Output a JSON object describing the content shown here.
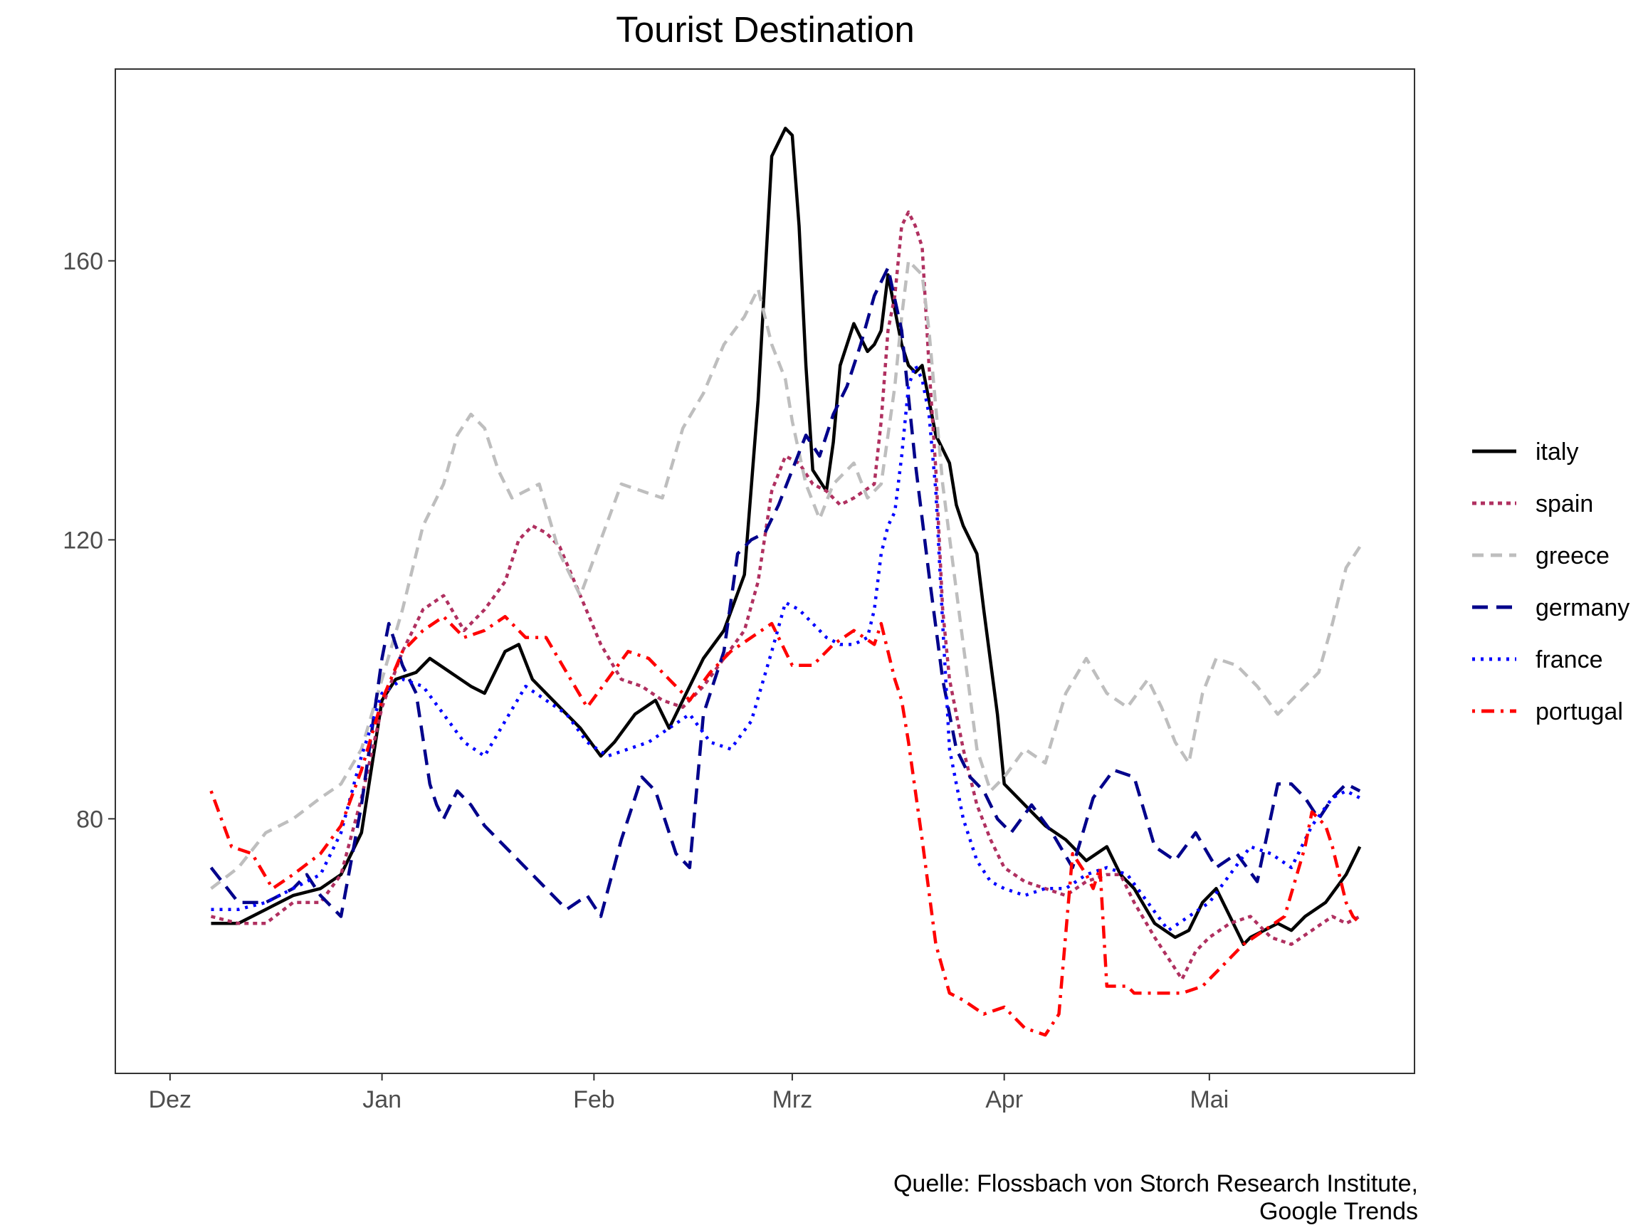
{
  "chart_data": {
    "type": "line",
    "title": "Tourist Destination",
    "xlabel": "",
    "ylabel": "",
    "caption_lines": [
      "Quelle: Flossbach von Storch Research Institute,",
      "Google Trends"
    ],
    "x_ticks": [
      "Dez",
      "Jan",
      "Feb",
      "Mrz",
      "Apr",
      "Mai"
    ],
    "x_tick_days": [
      0,
      31,
      62,
      91,
      122,
      152
    ],
    "xlim": [
      -8,
      182
    ],
    "y_ticks": [
      80,
      120,
      160
    ],
    "ylim": [
      43.5,
      187.5
    ],
    "grid": false,
    "legend_position": "right",
    "series": [
      {
        "name": "italy",
        "color": "#000000",
        "dash": "solid",
        "x": [
          6,
          10,
          14,
          18,
          22,
          25,
          28,
          31,
          33,
          36,
          38,
          41,
          44,
          46,
          49,
          51,
          53,
          57,
          60,
          63,
          65,
          68,
          71,
          73,
          75,
          78,
          81,
          84,
          86,
          88,
          90,
          91,
          92,
          93,
          94,
          96,
          97,
          98,
          100,
          102,
          103,
          104,
          105,
          107,
          108,
          109,
          110,
          111,
          112,
          113,
          114,
          115,
          116,
          118,
          119,
          121,
          122,
          125,
          128,
          131,
          134,
          137,
          139,
          141,
          144,
          147,
          149,
          151,
          153,
          155,
          156,
          157,
          158,
          160,
          162,
          164,
          166,
          169,
          172,
          173,
          174
        ],
        "y": [
          65,
          65,
          67,
          69,
          70,
          72,
          78,
          97,
          100,
          101,
          103,
          101,
          99,
          98,
          104,
          105,
          100,
          96,
          93,
          89,
          91,
          95,
          97,
          93,
          97,
          103,
          107,
          115,
          140,
          175,
          179,
          178,
          165,
          145,
          130,
          127,
          134,
          145,
          151,
          147,
          148,
          150,
          158,
          148,
          145,
          144,
          145,
          140,
          135,
          133,
          131,
          125,
          122,
          118,
          110,
          95,
          85,
          82,
          79,
          77,
          74,
          76,
          72,
          70,
          65,
          63,
          64,
          68,
          70,
          66,
          64,
          62,
          63,
          64,
          65,
          64,
          66,
          68,
          72,
          74,
          76
        ]
      },
      {
        "name": "spain",
        "color": "#b03060",
        "dash": "dotted",
        "x": [
          6,
          10,
          14,
          18,
          22,
          25,
          28,
          31,
          34,
          37,
          40,
          43,
          46,
          49,
          51,
          53,
          55,
          57,
          60,
          63,
          66,
          69,
          72,
          75,
          78,
          81,
          84,
          86,
          88,
          90,
          92,
          94,
          96,
          98,
          100,
          103,
          104,
          105,
          106,
          107,
          108,
          109,
          110,
          111,
          112,
          113,
          114,
          116,
          118,
          120,
          122,
          125,
          128,
          131,
          134,
          137,
          139,
          141,
          144,
          146,
          148,
          150,
          152,
          155,
          158,
          161,
          164,
          167,
          170,
          172,
          174
        ],
        "y": [
          66,
          65,
          65,
          68,
          68,
          72,
          83,
          96,
          104,
          110,
          112,
          107,
          110,
          114,
          120,
          122,
          121,
          119,
          112,
          105,
          100,
          99,
          97,
          96,
          99,
          103,
          107,
          114,
          127,
          132,
          131,
          128,
          127,
          125,
          126,
          128,
          137,
          150,
          155,
          165,
          167,
          165,
          162,
          145,
          130,
          110,
          100,
          90,
          82,
          77,
          73,
          71,
          70,
          69,
          71,
          72,
          72,
          68,
          63,
          60,
          57,
          61,
          63,
          65,
          66,
          63,
          62,
          64,
          66,
          65,
          66
        ]
      },
      {
        "name": "greece",
        "color": "#bebebe",
        "dash": "dashed",
        "x": [
          6,
          10,
          14,
          18,
          22,
          25,
          28,
          31,
          34,
          37,
          40,
          42,
          44,
          46,
          48,
          50,
          52,
          54,
          57,
          60,
          63,
          66,
          69,
          72,
          75,
          78,
          81,
          84,
          86,
          88,
          90,
          91,
          93,
          95,
          97,
          100,
          102,
          104,
          106,
          107,
          108,
          110,
          111,
          113,
          116,
          118,
          120,
          122,
          125,
          128,
          131,
          134,
          137,
          140,
          143,
          145,
          147,
          149,
          151,
          153,
          156,
          159,
          162,
          165,
          168,
          170,
          172,
          174
        ],
        "y": [
          70,
          73,
          78,
          80,
          83,
          85,
          90,
          100,
          110,
          122,
          128,
          135,
          138,
          136,
          130,
          126,
          127,
          128,
          118,
          112,
          120,
          128,
          127,
          126,
          136,
          141,
          148,
          152,
          156,
          148,
          143,
          137,
          128,
          123,
          128,
          131,
          126,
          128,
          142,
          152,
          160,
          158,
          150,
          128,
          105,
          90,
          84,
          86,
          90,
          88,
          98,
          103,
          98,
          96,
          100,
          96,
          91,
          88,
          98,
          103,
          102,
          99,
          95,
          98,
          101,
          108,
          116,
          119
        ]
      },
      {
        "name": "germany",
        "color": "#00008b",
        "dash": "longdash",
        "x": [
          6,
          10,
          14,
          18,
          20,
          22,
          25,
          28,
          31,
          32,
          34,
          36,
          38,
          39,
          40,
          42,
          44,
          46,
          49,
          52,
          55,
          58,
          61,
          63,
          66,
          69,
          71,
          74,
          76,
          78,
          81,
          83,
          85,
          87,
          89,
          91,
          93,
          95,
          97,
          99,
          101,
          103,
          105,
          107,
          109,
          111,
          113,
          115,
          117,
          119,
          121,
          123,
          126,
          129,
          132,
          135,
          138,
          141,
          144,
          147,
          150,
          153,
          156,
          159,
          162,
          164,
          166,
          168,
          170,
          172,
          174
        ],
        "y": [
          73,
          68,
          68,
          70,
          72,
          69,
          66,
          82,
          103,
          108,
          102,
          98,
          85,
          82,
          80,
          84,
          82,
          79,
          76,
          73,
          70,
          67,
          69,
          66,
          77,
          86,
          84,
          75,
          73,
          95,
          104,
          118,
          120,
          121,
          125,
          130,
          135,
          132,
          138,
          142,
          148,
          155,
          159,
          150,
          131,
          115,
          100,
          90,
          86,
          84,
          80,
          78,
          82,
          78,
          73,
          83,
          87,
          86,
          76,
          74,
          78,
          73,
          75,
          71,
          85,
          85,
          83,
          80,
          83,
          85,
          84
        ]
      },
      {
        "name": "france",
        "color": "#0000ff",
        "dash": "dotted2",
        "x": [
          6,
          10,
          14,
          18,
          22,
          25,
          28,
          31,
          34,
          37,
          40,
          43,
          46,
          49,
          52,
          55,
          58,
          61,
          64,
          67,
          70,
          73,
          76,
          79,
          82,
          85,
          88,
          90,
          92,
          94,
          96,
          98,
          100,
          102,
          103,
          104,
          105,
          106,
          107,
          108,
          109,
          110,
          111,
          112,
          113,
          114,
          116,
          118,
          120,
          122,
          125,
          128,
          131,
          134,
          137,
          140,
          143,
          146,
          149,
          152,
          155,
          158,
          161,
          164,
          167,
          170,
          172,
          174
        ],
        "y": [
          67,
          67,
          68,
          70,
          72,
          78,
          89,
          98,
          100,
          99,
          95,
          91,
          89,
          94,
          99,
          97,
          95,
          91,
          89,
          90,
          91,
          93,
          95,
          91,
          90,
          94,
          104,
          111,
          110,
          108,
          106,
          105,
          105,
          106,
          110,
          118,
          122,
          124,
          132,
          142,
          145,
          143,
          138,
          127,
          108,
          90,
          80,
          74,
          71,
          70,
          69,
          70,
          70,
          72,
          73,
          72,
          68,
          64,
          66,
          68,
          72,
          76,
          75,
          73,
          79,
          83,
          84,
          83
        ]
      },
      {
        "name": "portugal",
        "color": "#ff0000",
        "dash": "dotdash",
        "x": [
          6,
          9,
          12,
          15,
          18,
          22,
          25,
          28,
          31,
          34,
          37,
          40,
          43,
          46,
          49,
          52,
          55,
          58,
          61,
          64,
          67,
          70,
          73,
          76,
          79,
          82,
          85,
          88,
          91,
          94,
          97,
          100,
          103,
          104,
          105,
          106,
          107,
          108,
          109,
          110,
          112,
          114,
          116,
          119,
          122,
          125,
          128,
          130,
          132,
          134,
          135,
          136,
          137,
          140,
          141,
          142,
          145,
          148,
          151,
          154,
          157,
          160,
          163,
          166,
          167,
          168,
          169,
          170,
          171,
          172,
          173,
          174
        ],
        "y": [
          84,
          76,
          75,
          70,
          72,
          75,
          79,
          87,
          97,
          104,
          107,
          109,
          106,
          107,
          109,
          106,
          106,
          101,
          96,
          100,
          104,
          103,
          100,
          97,
          101,
          104,
          106,
          108,
          102,
          102,
          105,
          107,
          105,
          108,
          104,
          100,
          97,
          91,
          84,
          77,
          62,
          55,
          54,
          52,
          53,
          50,
          49,
          52,
          75,
          72,
          70,
          73,
          56,
          56,
          55,
          55,
          55,
          55,
          56,
          59,
          62,
          64,
          66,
          76,
          81,
          80,
          79,
          76,
          72,
          68,
          66,
          65
        ]
      }
    ]
  }
}
